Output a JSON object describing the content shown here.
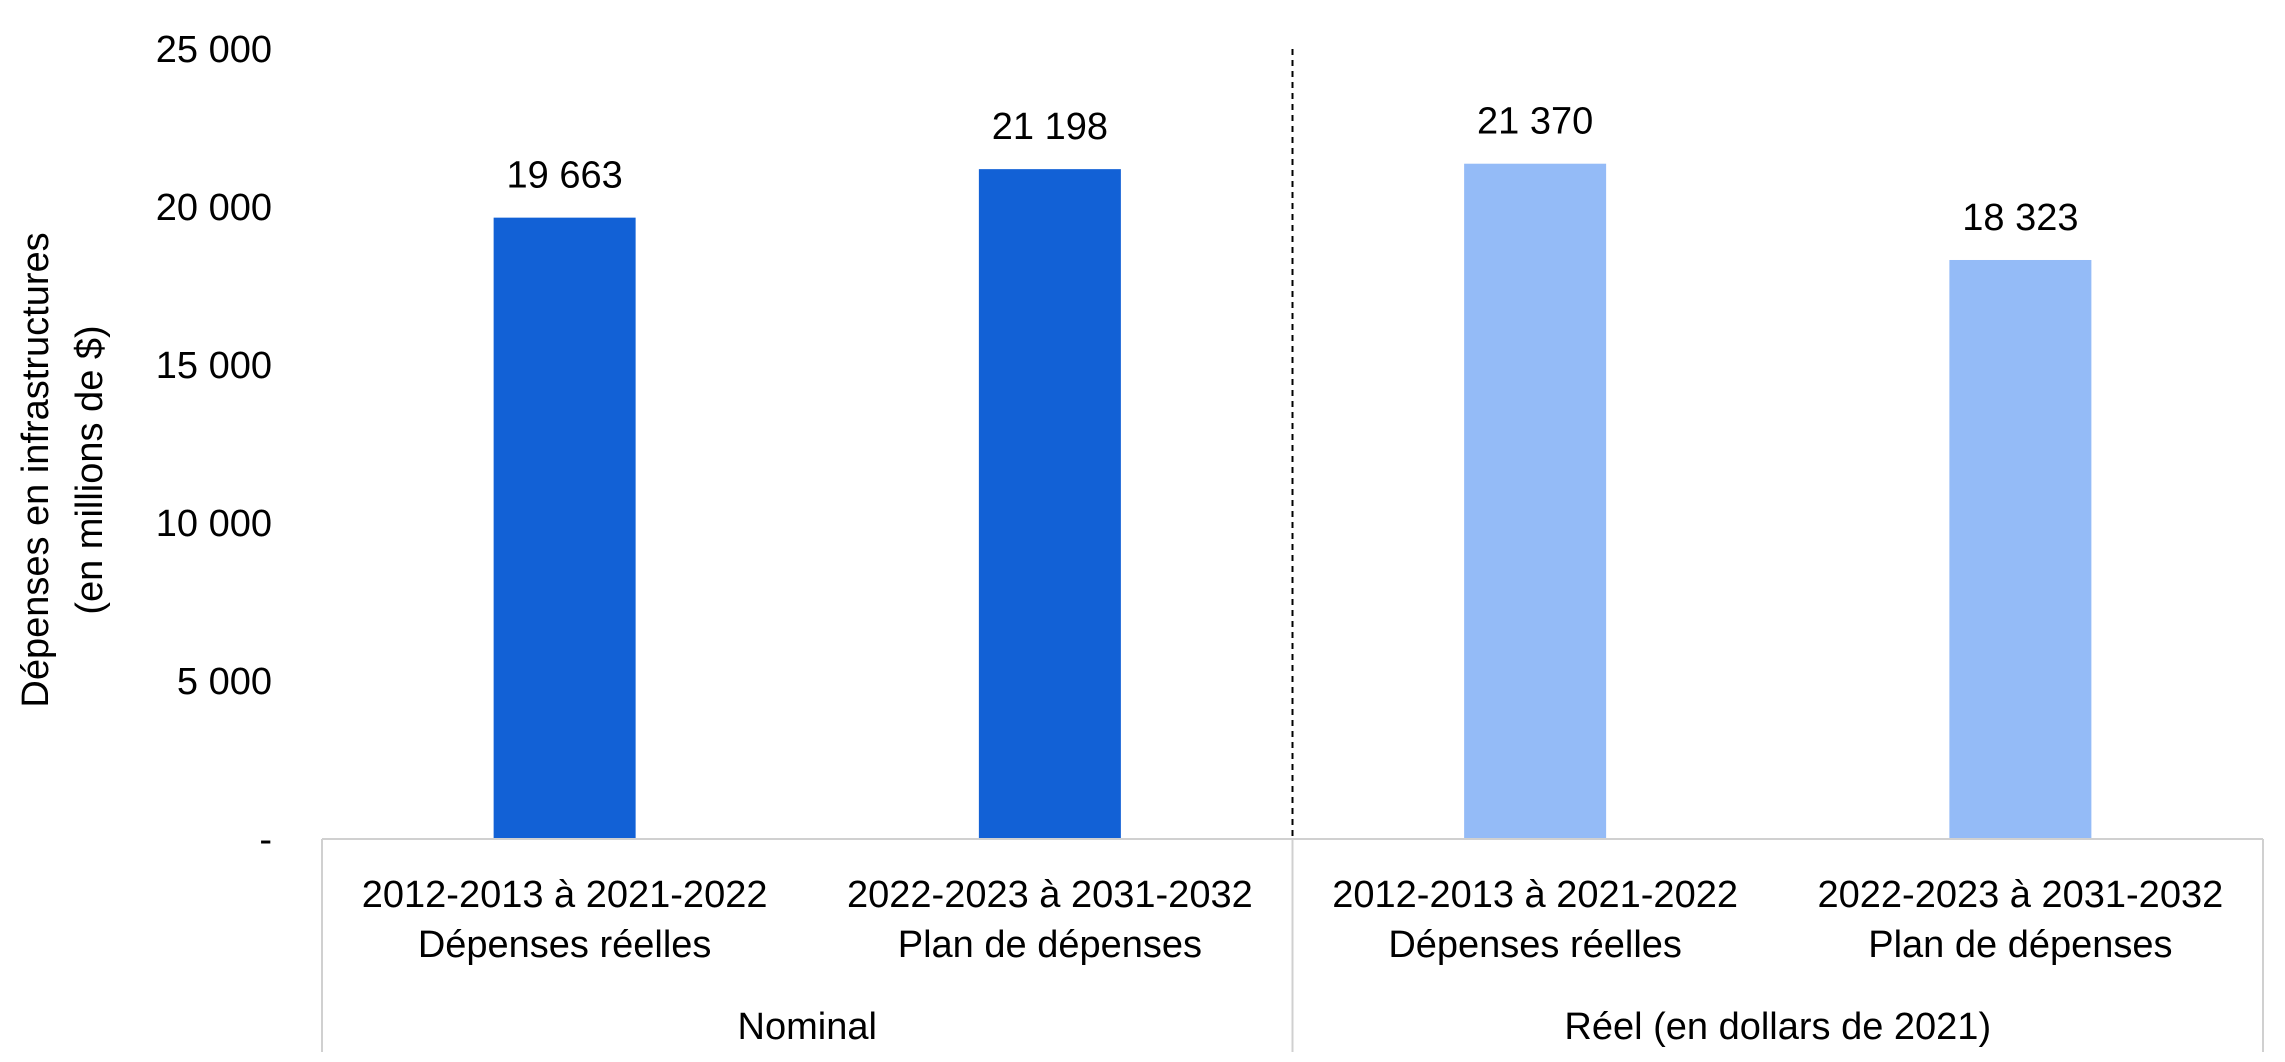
{
  "chart_data": {
    "type": "bar",
    "title": "",
    "ylabel": [
      "Dépenses en infrastructures",
      "(en millions de $)"
    ],
    "xlabel": "",
    "ylim": [
      0,
      25000
    ],
    "yticks": [
      {
        "value": 0,
        "label": "-"
      },
      {
        "value": 5000,
        "label": "5 000"
      },
      {
        "value": 10000,
        "label": "10 000"
      },
      {
        "value": 15000,
        "label": "15 000"
      },
      {
        "value": 20000,
        "label": "20 000"
      },
      {
        "value": 25000,
        "label": "25 000"
      }
    ],
    "grid": false,
    "legend": "none",
    "groups": [
      {
        "name": "Nominal",
        "color": "#1261d6",
        "bars": [
          {
            "category": [
              "2012-2013 à 2021-2022",
              "Dépenses réelles"
            ],
            "value": 19663,
            "label": "19 663"
          },
          {
            "category": [
              "2022-2023 à 2031-2032",
              "Plan de dépenses"
            ],
            "value": 21198,
            "label": "21 198"
          }
        ]
      },
      {
        "name": "Réel (en dollars de 2021)",
        "color": "#94bbf7",
        "bars": [
          {
            "category": [
              "2012-2013 à 2021-2022",
              "Dépenses réelles"
            ],
            "value": 21370,
            "label": "21 370"
          },
          {
            "category": [
              "2022-2023 à 2031-2032",
              "Plan de dépenses"
            ],
            "value": 18323,
            "label": "18 323"
          }
        ]
      }
    ],
    "axis_color": "#d0d0d0",
    "separator_color": "#000000"
  }
}
